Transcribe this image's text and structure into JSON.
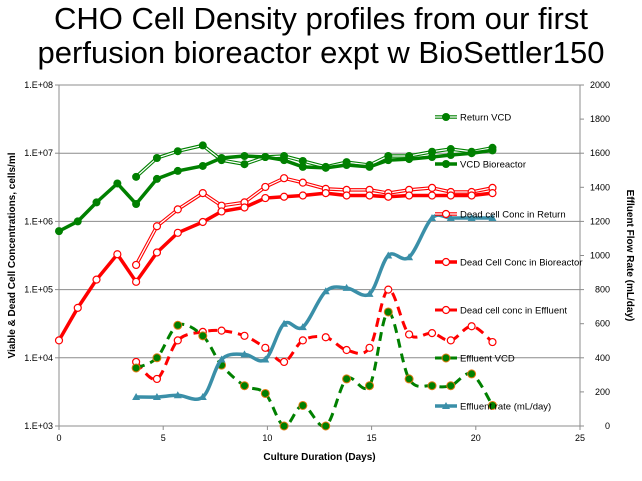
{
  "title_line1": "CHO Cell Density profiles from our first",
  "title_line2": "perfusion bioreactor expt w BioSettler150",
  "chart_data": {
    "type": "line",
    "xlabel": "Culture Duration (Days)",
    "ylabel": "Viable & Dead Cell Concentrations, cells/ml",
    "y2label": "Effluent Flow Rate (mL/day)",
    "xlim": [
      0,
      25
    ],
    "xticks": [
      "0",
      "5",
      "10",
      "15",
      "20",
      "25"
    ],
    "ylim": [
      1000,
      100000000
    ],
    "yscale": "log",
    "yticks": [
      "1.E+03",
      "1.E+04",
      "1.E+05",
      "1.E+06",
      "1.E+07",
      "1.E+08"
    ],
    "y2lim": [
      0,
      2000
    ],
    "y2ticks": [
      "0",
      "200",
      "400",
      "600",
      "800",
      "1000",
      "1200",
      "1400",
      "1600",
      "1800",
      "2000"
    ],
    "grid": "horizontal",
    "legend_placement": "right-inside",
    "series": [
      {
        "name": "Return VCD",
        "axis": "left",
        "color": "#008000",
        "style": "thin-double",
        "marker": "filled-circle",
        "x": [
          3.7,
          4.7,
          5.7,
          6.9,
          7.8,
          8.9,
          9.9,
          10.8,
          11.7,
          12.8,
          13.8,
          14.9,
          15.8,
          16.8,
          17.9,
          18.8,
          19.8,
          20.8
        ],
        "y": [
          4500000.0,
          8500000.0,
          10700000.0,
          13000000.0,
          7900000.0,
          6900000.0,
          8800000.0,
          9100000.0,
          7700000.0,
          6300000.0,
          7400000.0,
          6700000.0,
          9100000.0,
          9100000.0,
          10500000.0,
          11500000.0,
          10500000.0,
          12000000.0
        ]
      },
      {
        "name": "VCD Bioreactor",
        "axis": "left",
        "color": "#008000",
        "style": "thick",
        "marker": "filled-circle",
        "x": [
          0,
          0.9,
          1.8,
          2.8,
          3.7,
          4.7,
          5.7,
          6.9,
          7.8,
          8.9,
          9.9,
          10.8,
          11.7,
          12.8,
          13.8,
          14.9,
          15.8,
          16.8,
          17.9,
          18.8,
          19.8,
          20.8
        ],
        "y": [
          720000.0,
          1000000.0,
          1900000.0,
          3600000.0,
          1800000.0,
          4200000.0,
          5500000.0,
          6500000.0,
          8500000.0,
          9100000.0,
          8800000.0,
          7900000.0,
          6300000.0,
          6100000.0,
          6700000.0,
          6300000.0,
          7900000.0,
          8200000.0,
          8800000.0,
          9400000.0,
          10000000.0,
          11000000.0
        ]
      },
      {
        "name": "Dead cell Conc in Return",
        "axis": "left",
        "color": "#ff0000",
        "style": "thin-double",
        "marker": "open-circle",
        "x": [
          3.7,
          4.7,
          5.7,
          6.9,
          7.8,
          8.9,
          9.9,
          10.8,
          11.7,
          12.8,
          13.8,
          14.9,
          15.8,
          16.8,
          17.9,
          18.8,
          19.8,
          20.8
        ],
        "y": [
          230000.0,
          850000.0,
          1500000.0,
          2600000.0,
          1700000.0,
          1900000.0,
          3200000.0,
          4300000.0,
          3700000.0,
          3000000.0,
          2900000.0,
          2900000.0,
          2600000.0,
          2900000.0,
          3100000.0,
          2700000.0,
          2700000.0,
          3100000.0
        ]
      },
      {
        "name": "Dead Cell Conc in Bioreactor",
        "axis": "left",
        "color": "#ff0000",
        "style": "thick",
        "marker": "open-circle",
        "x": [
          0,
          0.9,
          1.8,
          2.8,
          3.7,
          4.7,
          5.7,
          6.9,
          7.8,
          8.9,
          9.9,
          10.8,
          11.7,
          12.8,
          13.8,
          14.9,
          15.8,
          16.8,
          17.9,
          18.8,
          19.8,
          20.8
        ],
        "y": [
          18000.0,
          54000.0,
          140000.0,
          330000.0,
          130000.0,
          350000.0,
          680000.0,
          980000.0,
          1400000.0,
          1600000.0,
          2200000.0,
          2300000.0,
          2400000.0,
          2600000.0,
          2400000.0,
          2400000.0,
          2300000.0,
          2400000.0,
          2400000.0,
          2400000.0,
          2400000.0,
          2600000.0
        ]
      },
      {
        "name": "Dead cell conc in Effluent",
        "axis": "left",
        "color": "#ff0000",
        "style": "dashed",
        "marker": "open-circle",
        "x": [
          3.7,
          4.7,
          5.7,
          6.9,
          7.8,
          8.9,
          9.9,
          10.8,
          11.7,
          12.8,
          13.8,
          14.9,
          15.8,
          16.8,
          17.9,
          18.8,
          19.8,
          20.8
        ],
        "y": [
          8700.0,
          4900.0,
          18000.0,
          24000.0,
          25000.0,
          21000.0,
          14000.0,
          8700.0,
          18000.0,
          20000.0,
          13000.0,
          14000.0,
          100000.0,
          22000.0,
          23000.0,
          18000.0,
          29000.0,
          17000.0
        ]
      },
      {
        "name": "Effluent VCD",
        "axis": "left",
        "color": "#008000",
        "style": "dashed",
        "marker": "filled-circle-orange-edge",
        "x": [
          3.7,
          4.7,
          5.7,
          6.9,
          7.8,
          8.9,
          9.9,
          10.8,
          11.7,
          12.8,
          13.8,
          14.9,
          15.8,
          16.8,
          17.9,
          18.8,
          19.8,
          20.8
        ],
        "y": [
          7100.0,
          10000.0,
          30000.0,
          21000.0,
          7800.0,
          3900.0,
          3000.0,
          1000.0,
          2000.0,
          1000.0,
          4900.0,
          3900.0,
          47000.0,
          4900.0,
          3900.0,
          3900.0,
          5800.0,
          2000.0
        ]
      },
      {
        "name": "Effluent rate (mL/day)",
        "axis": "right",
        "color": "#3a8fa8",
        "style": "thick",
        "marker": "triangle",
        "x": [
          3.7,
          4.7,
          5.7,
          6.9,
          7.8,
          8.9,
          9.9,
          10.8,
          11.7,
          12.8,
          13.8,
          14.9,
          15.8,
          16.8,
          17.9,
          18.8,
          19.8,
          20.8
        ],
        "y": [
          170,
          170,
          180,
          170,
          390,
          420,
          390,
          600,
          580,
          790,
          810,
          775,
          1000,
          990,
          1220,
          1220,
          1220,
          1220
        ]
      }
    ]
  }
}
